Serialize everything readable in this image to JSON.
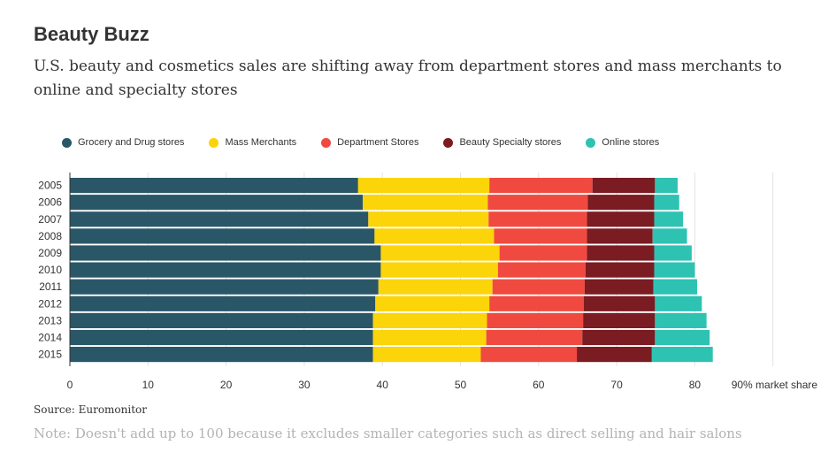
{
  "title": "Beauty Buzz",
  "subtitle": "U.S. beauty and cosmetics sales are shifting away from department stores and mass merchants to online and specialty stores",
  "source": "Source: Euromonitor",
  "note": "Note: Doesn't add up to 100 because it excludes smaller categories such as direct selling and hair salons",
  "chart_data": {
    "type": "bar",
    "orientation": "horizontal",
    "stacked": true,
    "categories": [
      "2005",
      "2006",
      "2007",
      "2008",
      "2009",
      "2010",
      "2011",
      "2012",
      "2013",
      "2014",
      "2015"
    ],
    "series": [
      {
        "name": "Grocery and Drug stores",
        "color": "#2a5768",
        "values": [
          36.9,
          37.5,
          38.2,
          39.0,
          39.8,
          39.8,
          39.5,
          39.1,
          38.8,
          38.8,
          38.8
        ]
      },
      {
        "name": "Mass Merchants",
        "color": "#fbd409",
        "values": [
          16.8,
          16.0,
          15.4,
          15.3,
          15.2,
          15.0,
          14.6,
          14.6,
          14.6,
          14.5,
          13.8
        ]
      },
      {
        "name": "Department Stores",
        "color": "#f04a40",
        "values": [
          13.2,
          12.8,
          12.6,
          11.9,
          11.2,
          11.2,
          11.8,
          12.1,
          12.3,
          12.3,
          12.3
        ]
      },
      {
        "name": "Beauty Specialty stores",
        "color": "#7b1b22",
        "values": [
          8.0,
          8.5,
          8.6,
          8.4,
          8.6,
          8.8,
          8.8,
          9.1,
          9.2,
          9.3,
          9.6
        ]
      },
      {
        "name": "Online stores",
        "color": "#2ec2b3",
        "values": [
          2.9,
          3.2,
          3.7,
          4.4,
          4.8,
          5.2,
          5.6,
          6.0,
          6.6,
          7.0,
          7.8
        ]
      }
    ],
    "x_ticks": [
      "0",
      "10",
      "20",
      "30",
      "40",
      "50",
      "60",
      "70",
      "80",
      "90% market share"
    ],
    "xlim": [
      0,
      90
    ],
    "grid": true,
    "legend_position": "top-left"
  }
}
